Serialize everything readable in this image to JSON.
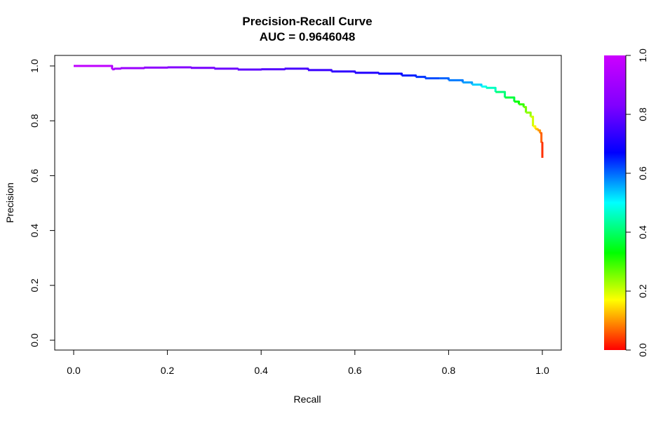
{
  "chart_data": {
    "type": "line",
    "title": "Precision-Recall Curve",
    "subtitle": "AUC = 0.9646048",
    "xlabel": "Recall",
    "ylabel": "Precision",
    "xlim": [
      0.0,
      1.0
    ],
    "ylim": [
      0.0,
      1.0
    ],
    "x_ticks": [
      "0.0",
      "0.2",
      "0.4",
      "0.6",
      "0.8",
      "1.0"
    ],
    "y_ticks": [
      "0.0",
      "0.2",
      "0.4",
      "0.6",
      "0.8",
      "1.0"
    ],
    "grid": false,
    "series": [
      {
        "x": [
          0.0,
          0.08,
          0.082,
          0.086,
          0.1,
          0.15,
          0.2,
          0.25,
          0.3,
          0.35,
          0.4,
          0.45,
          0.5,
          0.55,
          0.6,
          0.65,
          0.7,
          0.73,
          0.75,
          0.78,
          0.8,
          0.83,
          0.85,
          0.87,
          0.88,
          0.9,
          0.92,
          0.94,
          0.95,
          0.96,
          0.965,
          0.975,
          0.98,
          0.985,
          0.99,
          0.995,
          0.998,
          1.0
        ],
        "y": [
          1.0,
          1.0,
          0.988,
          0.99,
          0.992,
          0.994,
          0.995,
          0.993,
          0.99,
          0.987,
          0.988,
          0.99,
          0.985,
          0.98,
          0.975,
          0.972,
          0.965,
          0.96,
          0.955,
          0.955,
          0.948,
          0.94,
          0.932,
          0.925,
          0.92,
          0.905,
          0.885,
          0.87,
          0.86,
          0.85,
          0.83,
          0.815,
          0.78,
          0.77,
          0.765,
          0.755,
          0.72,
          0.665
        ],
        "threshold": [
          1.0,
          0.99,
          0.985,
          0.98,
          0.97,
          0.96,
          0.95,
          0.94,
          0.93,
          0.92,
          0.91,
          0.9,
          0.89,
          0.88,
          0.87,
          0.85,
          0.82,
          0.8,
          0.78,
          0.76,
          0.74,
          0.71,
          0.67,
          0.62,
          0.58,
          0.52,
          0.47,
          0.42,
          0.38,
          0.33,
          0.3,
          0.25,
          0.2,
          0.16,
          0.12,
          0.08,
          0.04,
          0.0
        ]
      }
    ],
    "colorbar": {
      "ticks": [
        "0.0",
        "0.2",
        "0.4",
        "0.6",
        "0.8",
        "1.0"
      ],
      "range": [
        0.0,
        1.0
      ],
      "palette": "rainbow red-to-magenta"
    }
  }
}
